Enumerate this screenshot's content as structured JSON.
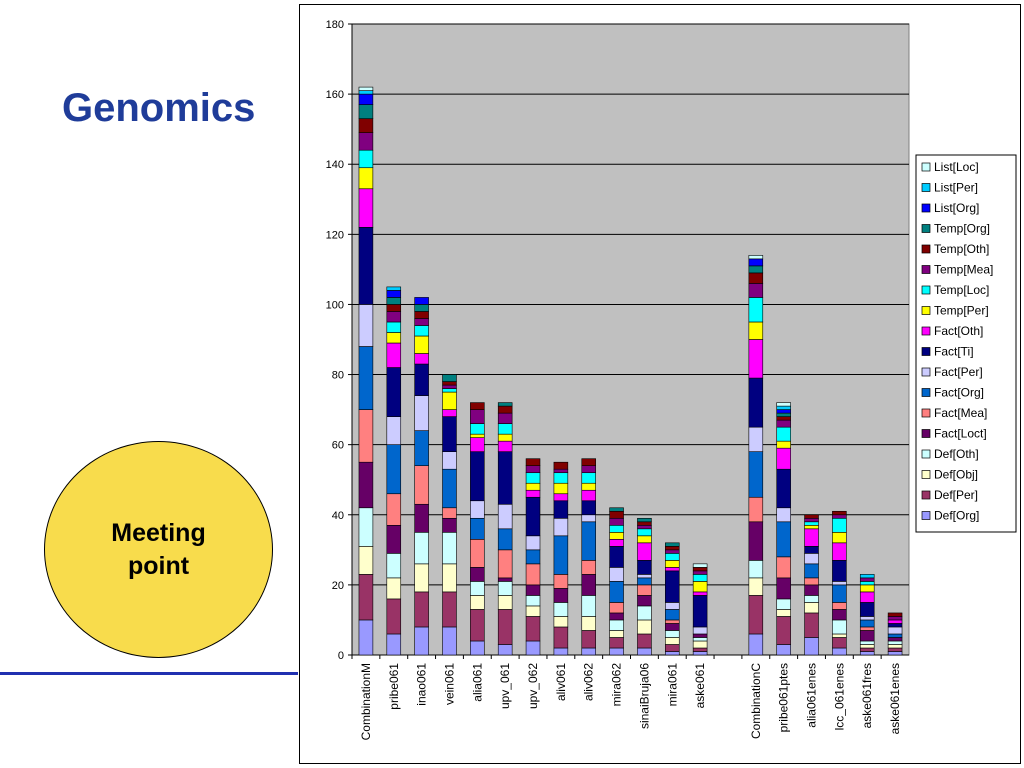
{
  "slide": {
    "title": "Genomics",
    "meeting_point": "Meeting point"
  },
  "chart_data": {
    "type": "bar",
    "stacked": true,
    "title": "",
    "xlabel": "",
    "ylabel": "",
    "ylim": [
      0,
      180
    ],
    "yticks": [
      0,
      20,
      40,
      60,
      80,
      100,
      120,
      140,
      160,
      180
    ],
    "grid": true,
    "legend_position": "right",
    "plot_background": "#c0c0c0",
    "categories": [
      "CombinationM",
      "pribe061",
      "inao061",
      "vein061",
      "alia061",
      "upv_061",
      "upv_062",
      "aliv061",
      "aliv062",
      "mira062",
      "sinaiBruja06",
      "mira061",
      "aske061",
      "",
      "CombinationC",
      "pribe061ptes",
      "alia061enes",
      "lcc_061enes",
      "aske061fres",
      "aske061enes"
    ],
    "series": [
      {
        "name": "Def[Org]",
        "color": "#9999ff",
        "values": [
          10,
          6,
          8,
          8,
          4,
          3,
          4,
          2,
          2,
          2,
          2,
          1,
          1,
          0,
          6,
          3,
          5,
          2,
          1,
          1
        ]
      },
      {
        "name": "Def[Per]",
        "color": "#993366",
        "values": [
          13,
          10,
          10,
          10,
          9,
          10,
          7,
          6,
          5,
          3,
          4,
          2,
          1,
          0,
          11,
          8,
          7,
          3,
          1,
          1
        ]
      },
      {
        "name": "Def[Obj]",
        "color": "#ffffcc",
        "values": [
          8,
          6,
          8,
          8,
          4,
          4,
          3,
          3,
          4,
          2,
          4,
          2,
          2,
          0,
          5,
          2,
          3,
          1,
          1,
          1
        ]
      },
      {
        "name": "Def[Oth]",
        "color": "#ccffff",
        "values": [
          11,
          7,
          9,
          9,
          4,
          4,
          3,
          4,
          6,
          3,
          4,
          2,
          1,
          0,
          5,
          3,
          2,
          4,
          1,
          1
        ]
      },
      {
        "name": "Fact[Loct]",
        "color": "#660066",
        "values": [
          13,
          8,
          8,
          4,
          4,
          1,
          3,
          4,
          6,
          2,
          3,
          2,
          1,
          0,
          11,
          6,
          3,
          3,
          3,
          1
        ]
      },
      {
        "name": "Fact[Mea]",
        "color": "#ff8080",
        "values": [
          15,
          9,
          11,
          3,
          8,
          8,
          6,
          4,
          4,
          3,
          3,
          1,
          0,
          0,
          7,
          6,
          2,
          2,
          1,
          0
        ]
      },
      {
        "name": "Fact[Org]",
        "color": "#0066cc",
        "values": [
          18,
          14,
          10,
          11,
          6,
          6,
          4,
          11,
          11,
          6,
          2,
          3,
          0,
          0,
          13,
          10,
          4,
          5,
          2,
          1
        ]
      },
      {
        "name": "Fact[Per]",
        "color": "#ccccff",
        "values": [
          12,
          8,
          10,
          5,
          5,
          7,
          4,
          5,
          2,
          4,
          1,
          2,
          2,
          0,
          7,
          4,
          3,
          1,
          1,
          2
        ]
      },
      {
        "name": "Fact[Ti]",
        "color": "#000080",
        "values": [
          22,
          14,
          9,
          10,
          14,
          15,
          11,
          5,
          4,
          6,
          4,
          9,
          9,
          0,
          14,
          11,
          2,
          6,
          4,
          1
        ]
      },
      {
        "name": "Fact[Oth]",
        "color": "#ff00ff",
        "values": [
          11,
          7,
          3,
          2,
          4,
          3,
          2,
          2,
          3,
          2,
          5,
          1,
          1,
          0,
          11,
          6,
          5,
          5,
          3,
          1
        ]
      },
      {
        "name": "Temp[Per]",
        "color": "#ffff00",
        "values": [
          6,
          3,
          5,
          5,
          1,
          2,
          2,
          3,
          2,
          2,
          2,
          2,
          3,
          0,
          5,
          2,
          1,
          3,
          2,
          0
        ]
      },
      {
        "name": "Temp[Loc]",
        "color": "#00ffff",
        "values": [
          5,
          3,
          3,
          1,
          3,
          3,
          3,
          3,
          3,
          2,
          2,
          2,
          2,
          0,
          7,
          4,
          1,
          4,
          1,
          0
        ]
      },
      {
        "name": "Temp[Mea]",
        "color": "#800080",
        "values": [
          5,
          3,
          2,
          1,
          4,
          3,
          2,
          1,
          2,
          2,
          1,
          1,
          1,
          0,
          4,
          2,
          1,
          1,
          1,
          1
        ]
      },
      {
        "name": "Temp[Oth]",
        "color": "#800000",
        "values": [
          4,
          2,
          2,
          1,
          2,
          2,
          2,
          2,
          2,
          2,
          1,
          1,
          1,
          0,
          3,
          1,
          1,
          1,
          0,
          1
        ]
      },
      {
        "name": "Temp[Org]",
        "color": "#008080",
        "values": [
          4,
          2,
          2,
          2,
          0,
          1,
          0,
          0,
          0,
          1,
          1,
          1,
          0,
          0,
          2,
          1,
          0,
          0,
          0,
          0
        ]
      },
      {
        "name": "List[Org]",
        "color": "#0000ff",
        "values": [
          3,
          2,
          2,
          0,
          0,
          0,
          0,
          0,
          0,
          0,
          0,
          0,
          0,
          0,
          2,
          1,
          0,
          0,
          0,
          0
        ]
      },
      {
        "name": "List[Per]",
        "color": "#00ccff",
        "values": [
          1,
          1,
          0,
          0,
          0,
          0,
          0,
          0,
          0,
          0,
          0,
          0,
          0,
          0,
          0,
          1,
          0,
          0,
          1,
          0
        ]
      },
      {
        "name": "List[Loc]",
        "color": "#ccffff",
        "values": [
          1,
          0,
          0,
          0,
          0,
          0,
          0,
          0,
          0,
          0,
          0,
          0,
          1,
          0,
          1,
          1,
          0,
          0,
          0,
          0
        ]
      }
    ]
  }
}
